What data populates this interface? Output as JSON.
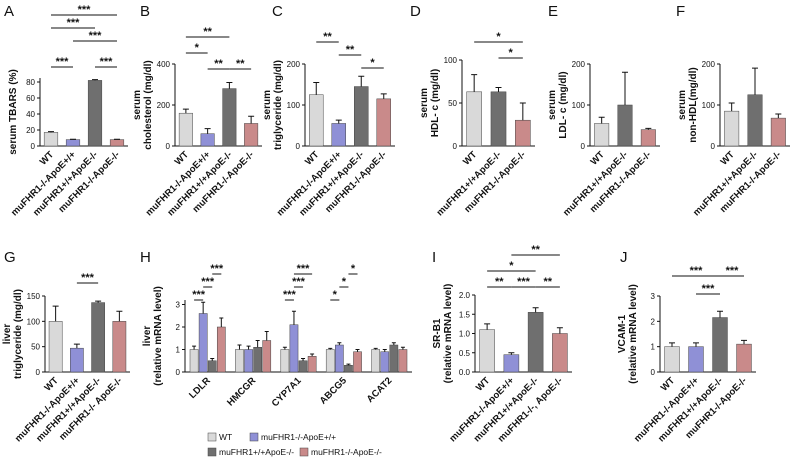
{
  "chart_data": [
    {
      "type": "bar",
      "label": "A",
      "ylabel": [
        "serum TBARS (%)"
      ],
      "categories": [
        "WT",
        "muFHR1-/-ApoE+/+",
        "muFHR1+/+ApoE-/-",
        "muFHR1-/-ApoE-/-"
      ],
      "values": [
        17,
        8,
        82,
        8
      ],
      "errors": [
        1,
        0.5,
        1,
        0.5
      ],
      "colors": [
        "#d9d9d9",
        "#8f90d6",
        "#6f6f6f",
        "#c98a8a"
      ],
      "ylim": [
        0,
        85
      ],
      "yticks": [
        0,
        20,
        40,
        60,
        80
      ],
      "significance": [
        {
          "pair": [
            0,
            3
          ],
          "text": "***",
          "level": 5
        },
        {
          "pair": [
            0,
            2
          ],
          "text": "***",
          "level": 4
        },
        {
          "pair": [
            1,
            3
          ],
          "text": "***",
          "level": 3
        },
        {
          "pair": [
            0,
            1
          ],
          "text": "***",
          "level": 1
        },
        {
          "pair": [
            2,
            3
          ],
          "text": "***",
          "level": 1
        }
      ]
    },
    {
      "type": "bar",
      "label": "B",
      "ylabel": [
        "serum",
        "cholesterol (mg/dl)"
      ],
      "categories": [
        "WT",
        "muFHR1-/-ApoE+/+",
        "muFHR1+/+ApoE-/-",
        "muFHR1-/-ApoE-/-"
      ],
      "values": [
        160,
        60,
        280,
        110
      ],
      "errors": [
        20,
        25,
        30,
        35
      ],
      "colors": [
        "#d9d9d9",
        "#8f90d6",
        "#6f6f6f",
        "#c98a8a"
      ],
      "ylim": [
        0,
        400
      ],
      "yticks": [
        0,
        200,
        400
      ],
      "significance": [
        {
          "pair": [
            0,
            2
          ],
          "text": "**",
          "level": 3
        },
        {
          "pair": [
            0,
            1
          ],
          "text": "*",
          "level": 2
        },
        {
          "pair": [
            1,
            2
          ],
          "text": "**",
          "level": 1
        },
        {
          "pair": [
            2,
            3
          ],
          "text": "**",
          "level": 1
        }
      ]
    },
    {
      "type": "bar",
      "label": "C",
      "ylabel": [
        "serum",
        "triglyceride  (mg/dl)"
      ],
      "categories": [
        "WT",
        "muFHR1-/-ApoE+/+",
        "muFHR1+/+ApoE-/-",
        "muFHR1-/-ApoE-/-"
      ],
      "values": [
        125,
        55,
        145,
        115
      ],
      "errors": [
        30,
        8,
        25,
        12
      ],
      "colors": [
        "#d9d9d9",
        "#8f90d6",
        "#6f6f6f",
        "#c98a8a"
      ],
      "ylim": [
        0,
        200
      ],
      "yticks": [
        0,
        100,
        200
      ],
      "significance": [
        {
          "pair": [
            0,
            1
          ],
          "text": "**",
          "level": 3
        },
        {
          "pair": [
            1,
            2
          ],
          "text": "**",
          "level": 2
        },
        {
          "pair": [
            2,
            3
          ],
          "text": "*",
          "level": 1
        }
      ]
    },
    {
      "type": "bar",
      "label": "D",
      "ylabel": [
        "serum",
        "HDL- c (mg/dl)"
      ],
      "categories": [
        "WT",
        "muFHR1+/+ApoE-/-",
        "muFHR1-/-ApoE-/-"
      ],
      "values": [
        63,
        63,
        30
      ],
      "errors": [
        20,
        5,
        20
      ],
      "colors": [
        "#d9d9d9",
        "#6f6f6f",
        "#c98a8a"
      ],
      "ylim": [
        0,
        100
      ],
      "yticks": [
        0,
        50,
        100
      ],
      "significance": [
        {
          "pair": [
            0,
            2
          ],
          "text": "*",
          "level": 2
        },
        {
          "pair": [
            1,
            2
          ],
          "text": "*",
          "level": 1
        }
      ]
    },
    {
      "type": "bar",
      "label": "E",
      "ylabel": [
        "serum",
        "LDL- c (mg/dl)"
      ],
      "categories": [
        "WT",
        "muFHR1+/+ApoE-/-",
        "muFHR1-/-ApoE-/-"
      ],
      "values": [
        55,
        100,
        40
      ],
      "errors": [
        15,
        80,
        3
      ],
      "colors": [
        "#d9d9d9",
        "#6f6f6f",
        "#c98a8a"
      ],
      "ylim": [
        0,
        200
      ],
      "yticks": [
        0,
        100,
        200
      ],
      "significance": []
    },
    {
      "type": "bar",
      "label": "F",
      "ylabel": [
        "serum",
        "non-HDL(mg/dl)"
      ],
      "categories": [
        "WT",
        "muFHR1+/+ApoE-/-",
        "muFHR1-/-ApoE-/-"
      ],
      "values": [
        85,
        125,
        68
      ],
      "errors": [
        20,
        65,
        10
      ],
      "colors": [
        "#d9d9d9",
        "#6f6f6f",
        "#c98a8a"
      ],
      "ylim": [
        0,
        200
      ],
      "yticks": [
        0,
        100,
        200
      ],
      "significance": []
    },
    {
      "type": "bar",
      "label": "G",
      "ylabel": [
        "liver",
        "triglyceride (mg/dl)"
      ],
      "categories": [
        "WT",
        "muFHR1-/-ApoE+/+",
        "muFHR1+/+ApoE-/-",
        "muFHR1-/- ApoE-/-"
      ],
      "values": [
        100,
        47,
        137,
        100
      ],
      "errors": [
        30,
        8,
        3,
        20
      ],
      "colors": [
        "#d9d9d9",
        "#8f90d6",
        "#6f6f6f",
        "#c98a8a"
      ],
      "ylim": [
        0,
        150
      ],
      "yticks": [
        0,
        50,
        100,
        150
      ],
      "significance": [
        {
          "pair": [
            1,
            2
          ],
          "text": "***",
          "level": 1
        }
      ]
    },
    {
      "type": "grouped_bar",
      "label": "H",
      "ylabel": [
        "liver",
        "(relative mRNA level)"
      ],
      "categories": [
        "LDLR",
        "HMCGR",
        "CYP7A1",
        "ABCG5",
        "ACAT2"
      ],
      "series": [
        {
          "name": "WT",
          "color": "#d9d9d9",
          "values": [
            1,
            1,
            1,
            1,
            1
          ],
          "errors": [
            0.15,
            0.2,
            0.1,
            0.05,
            0.05
          ]
        },
        {
          "name": "muFHR1-/-ApoE+/+",
          "color": "#8f90d6",
          "values": [
            2.6,
            1.0,
            2.1,
            1.2,
            0.9
          ],
          "errors": [
            0.5,
            0.15,
            0.6,
            0.1,
            0.1
          ]
        },
        {
          "name": "muFHR1+/+ApoE-/-",
          "color": "#6f6f6f",
          "values": [
            0.5,
            1.1,
            0.5,
            0.3,
            1.2
          ],
          "errors": [
            0.1,
            0.3,
            0.1,
            0.05,
            0.1
          ]
        },
        {
          "name": "muFHR1-/-ApoE-/-",
          "color": "#c98a8a",
          "values": [
            2.0,
            1.4,
            0.7,
            0.9,
            1.0
          ],
          "errors": [
            0.4,
            0.4,
            0.1,
            0.1,
            0.1
          ]
        }
      ],
      "ylim": [
        0,
        3.2
      ],
      "yticks": [
        0,
        1,
        2,
        3
      ],
      "significance": [
        {
          "group": 0,
          "pair": [
            0,
            1
          ],
          "text": "***",
          "level": 1
        },
        {
          "group": 0,
          "pair": [
            1,
            2
          ],
          "text": "***",
          "level": 2
        },
        {
          "group": 0,
          "pair": [
            2,
            3
          ],
          "text": "***",
          "level": 3
        },
        {
          "group": 2,
          "pair": [
            0,
            1
          ],
          "text": "***",
          "level": 1
        },
        {
          "group": 2,
          "pair": [
            1,
            2
          ],
          "text": "***",
          "level": 2
        },
        {
          "group": 2,
          "pair": [
            1,
            3
          ],
          "text": "***",
          "level": 3
        },
        {
          "group": 3,
          "pair": [
            0,
            1
          ],
          "text": "*",
          "level": 1
        },
        {
          "group": 3,
          "pair": [
            1,
            2
          ],
          "text": "*",
          "level": 2
        },
        {
          "group": 3,
          "pair": [
            2,
            3
          ],
          "text": "*",
          "level": 3
        }
      ]
    },
    {
      "type": "bar",
      "label": "I",
      "ylabel": [
        "SR-B1",
        "(relative mRNA level)"
      ],
      "categories": [
        "WT",
        "muFHR1-/-ApoE+/+",
        "muFHR1+/+ApoE-/-",
        "muFHR1-/-, ApoE-/-"
      ],
      "values": [
        1.1,
        0.45,
        1.55,
        1.0
      ],
      "errors": [
        0.15,
        0.05,
        0.12,
        0.15
      ],
      "colors": [
        "#d9d9d9",
        "#8f90d6",
        "#6f6f6f",
        "#c98a8a"
      ],
      "ylim": [
        0,
        2
      ],
      "yticks": [
        {
          "value": 0,
          "label": "0.0"
        },
        {
          "value": 0.5,
          "label": "0.5"
        },
        {
          "value": 1,
          "label": "1.0"
        },
        {
          "value": 1.5,
          "label": "1.5"
        },
        {
          "value": 2,
          "label": "2.0"
        }
      ],
      "significance": [
        {
          "pair": [
            0,
            1
          ],
          "text": "**",
          "level": 1
        },
        {
          "pair": [
            1,
            2
          ],
          "text": "***",
          "level": 1
        },
        {
          "pair": [
            2,
            3
          ],
          "text": "**",
          "level": 1
        },
        {
          "pair": [
            0,
            2
          ],
          "text": "*",
          "level": 2
        },
        {
          "pair": [
            1,
            3
          ],
          "text": "**",
          "level": 3
        }
      ]
    },
    {
      "type": "bar",
      "label": "J",
      "ylabel": [
        "VCAM-1",
        "(relative mRNA level)"
      ],
      "categories": [
        "WT",
        "muFHR1-/-ApoE+/+",
        "muFHR1+/+ApoE-/-",
        "muFHR1-/-ApoE-/-"
      ],
      "values": [
        1.0,
        1.0,
        2.15,
        1.1
      ],
      "errors": [
        0.15,
        0.15,
        0.25,
        0.15
      ],
      "colors": [
        "#d9d9d9",
        "#8f90d6",
        "#6f6f6f",
        "#c98a8a"
      ],
      "ylim": [
        0,
        3
      ],
      "yticks": [
        0,
        1,
        2,
        3
      ],
      "significance": [
        {
          "pair": [
            1,
            2
          ],
          "text": "***",
          "level": 1
        },
        {
          "pair": [
            0,
            2
          ],
          "text": "***",
          "level": 2
        },
        {
          "pair": [
            2,
            3
          ],
          "text": "***",
          "level": 2
        }
      ]
    }
  ]
}
